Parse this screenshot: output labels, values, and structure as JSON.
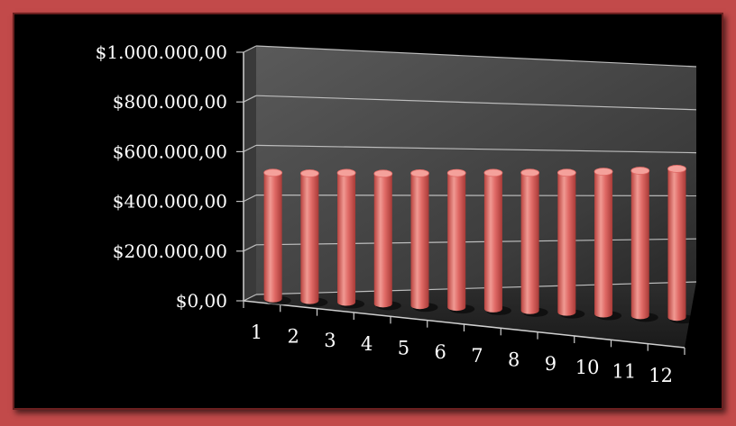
{
  "chart_data": {
    "type": "bar",
    "style": "3d-column",
    "categories": [
      "1",
      "2",
      "3",
      "4",
      "5",
      "6",
      "7",
      "8",
      "9",
      "10",
      "11",
      "12"
    ],
    "values": [
      510000,
      520000,
      535000,
      545000,
      560000,
      575000,
      590000,
      605000,
      620000,
      640000,
      660000,
      685000
    ],
    "ylim": [
      0,
      1000000
    ],
    "ytick_labels": [
      "$0,00",
      "$200.000,00",
      "$400.000,00",
      "$600.000,00",
      "$800.000,00",
      "$1.000.000,00"
    ],
    "grid": true,
    "legend": "none",
    "colors": {
      "bar": "#e06a66",
      "bar_dark": "#a83a37",
      "bar_light": "#f4a19b",
      "frame": "#c24a4a",
      "background": "#000000",
      "plot_wall": "#4a4a4a",
      "gridline": "#bdbdbd",
      "text": "#ffffff"
    }
  }
}
